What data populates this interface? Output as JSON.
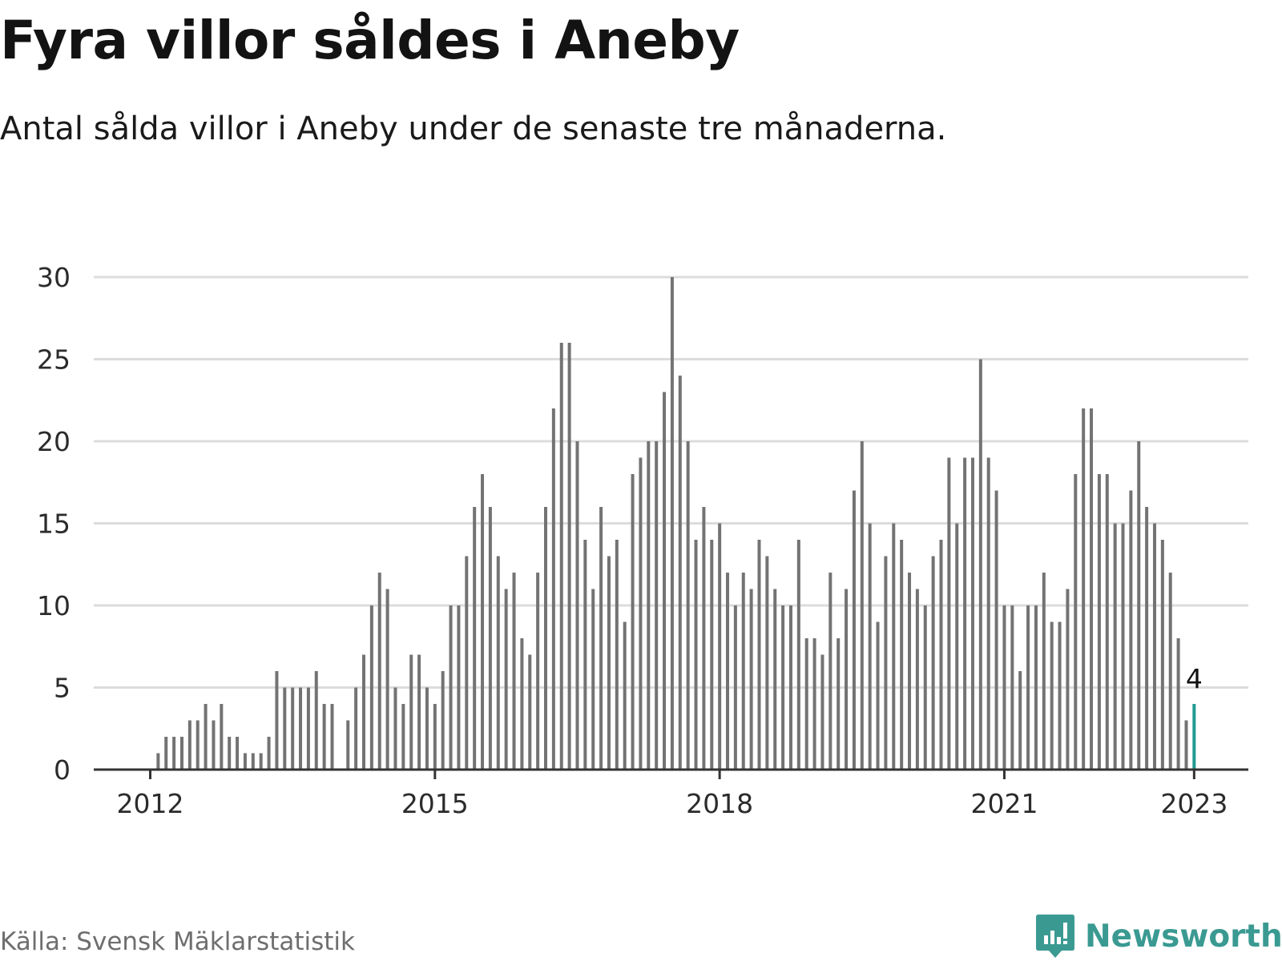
{
  "header": {
    "title": "Fyra villor såldes i Aneby",
    "subtitle": "Antal sålda villor i Aneby under de senaste tre månaderna."
  },
  "footer": {
    "source": "Källa: Svensk Mäklarstatistik",
    "brand": "Newsworthy"
  },
  "colors": {
    "bar": "#737373",
    "highlight": "#1f9a92",
    "grid": "#dcdcdc",
    "axis": "#333333",
    "brand": "#3a9a92"
  },
  "chart_data": {
    "type": "bar",
    "title": "Fyra villor såldes i Aneby",
    "subtitle": "Antal sålda villor i Aneby under de senaste tre månaderna.",
    "xlabel": "",
    "ylabel": "",
    "ylim": [
      0,
      30
    ],
    "yticks": [
      "0",
      "5",
      "10",
      "15",
      "20",
      "25",
      "30"
    ],
    "grid": true,
    "x_start": "2012-01",
    "x_end": "2023-01",
    "xticks": [
      {
        "label": "2012",
        "date": "2012-01"
      },
      {
        "label": "2015",
        "date": "2015-01"
      },
      {
        "label": "2018",
        "date": "2018-01"
      },
      {
        "label": "2021",
        "date": "2021-01"
      },
      {
        "label": "2023",
        "date": "2023-01"
      }
    ],
    "series": [
      {
        "name": "Antal sålda villor",
        "values": [
          0,
          1,
          2,
          2,
          2,
          3,
          3,
          4,
          3,
          4,
          2,
          2,
          1,
          1,
          1,
          2,
          6,
          5,
          5,
          5,
          5,
          6,
          4,
          4,
          0,
          3,
          5,
          7,
          10,
          12,
          11,
          5,
          4,
          7,
          7,
          5,
          4,
          6,
          10,
          10,
          13,
          16,
          18,
          16,
          13,
          11,
          12,
          8,
          7,
          12,
          16,
          22,
          26,
          26,
          20,
          14,
          11,
          16,
          13,
          14,
          9,
          18,
          19,
          20,
          20,
          23,
          30,
          24,
          20,
          14,
          16,
          14,
          15,
          12,
          10,
          12,
          11,
          14,
          13,
          11,
          10,
          10,
          14,
          8,
          8,
          7,
          12,
          8,
          11,
          17,
          20,
          15,
          9,
          13,
          15,
          14,
          12,
          11,
          10,
          13,
          14,
          19,
          15,
          19,
          19,
          25,
          19,
          17,
          10,
          10,
          6,
          10,
          10,
          12,
          9,
          9,
          11,
          18,
          22,
          22,
          18,
          18,
          15,
          15,
          17,
          20,
          16,
          15,
          14,
          12,
          8,
          3,
          4
        ]
      }
    ],
    "highlight": {
      "date": "2023-01",
      "value": 4,
      "label": "4"
    }
  }
}
